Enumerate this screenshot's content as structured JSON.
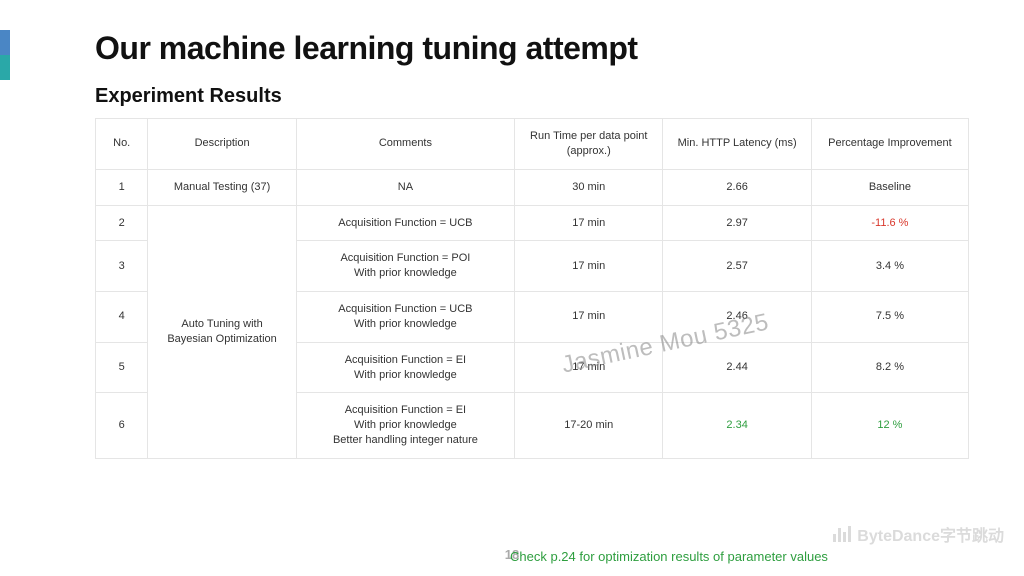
{
  "title": "Our machine learning tuning attempt",
  "subtitle": "Experiment Results",
  "table": {
    "headers": {
      "no": "No.",
      "desc": "Description",
      "comments": "Comments",
      "runtime": "Run Time per data point (approx.)",
      "latency": "Min. HTTP Latency (ms)",
      "improve": "Percentage Improvement"
    },
    "row1": {
      "no": "1",
      "desc": "Manual Testing (37)",
      "comments": "NA",
      "runtime": "30 min",
      "latency": "2.66",
      "improve": "Baseline"
    },
    "desc_merged": "Auto Tuning with\nBayesian Optimization",
    "row2": {
      "no": "2",
      "comments": "Acquisition Function = UCB",
      "runtime": "17 min",
      "latency": "2.97",
      "improve": "-11.6 %"
    },
    "row3": {
      "no": "3",
      "comments": "Acquisition Function = POI\nWith prior knowledge",
      "runtime": "17 min",
      "latency": "2.57",
      "improve": "3.4 %"
    },
    "row4": {
      "no": "4",
      "comments": "Acquisition Function = UCB\nWith prior knowledge",
      "runtime": "17 min",
      "latency": "2.46",
      "improve": "7.5 %"
    },
    "row5": {
      "no": "5",
      "comments": "Acquisition Function = EI\nWith prior knowledge",
      "runtime": "17 min",
      "latency": "2.44",
      "improve": "8.2 %"
    },
    "row6": {
      "no": "6",
      "comments": "Acquisition Function = EI\nWith prior knowledge\nBetter handling integer nature",
      "runtime": "17-20 min",
      "latency": "2.34",
      "improve": "12 %"
    }
  },
  "watermark": "Jasmine Mou 5325",
  "pagenum": "18",
  "footnote": "Check p.24 for optimization results of parameter values",
  "brand": "ByteDance字节跳动",
  "colors": {
    "negative": "#d9372b",
    "positive": "#2e9e3f",
    "border": "#e5e5e5",
    "accent1": "#4a86c5",
    "accent2": "#2aa8a8"
  }
}
